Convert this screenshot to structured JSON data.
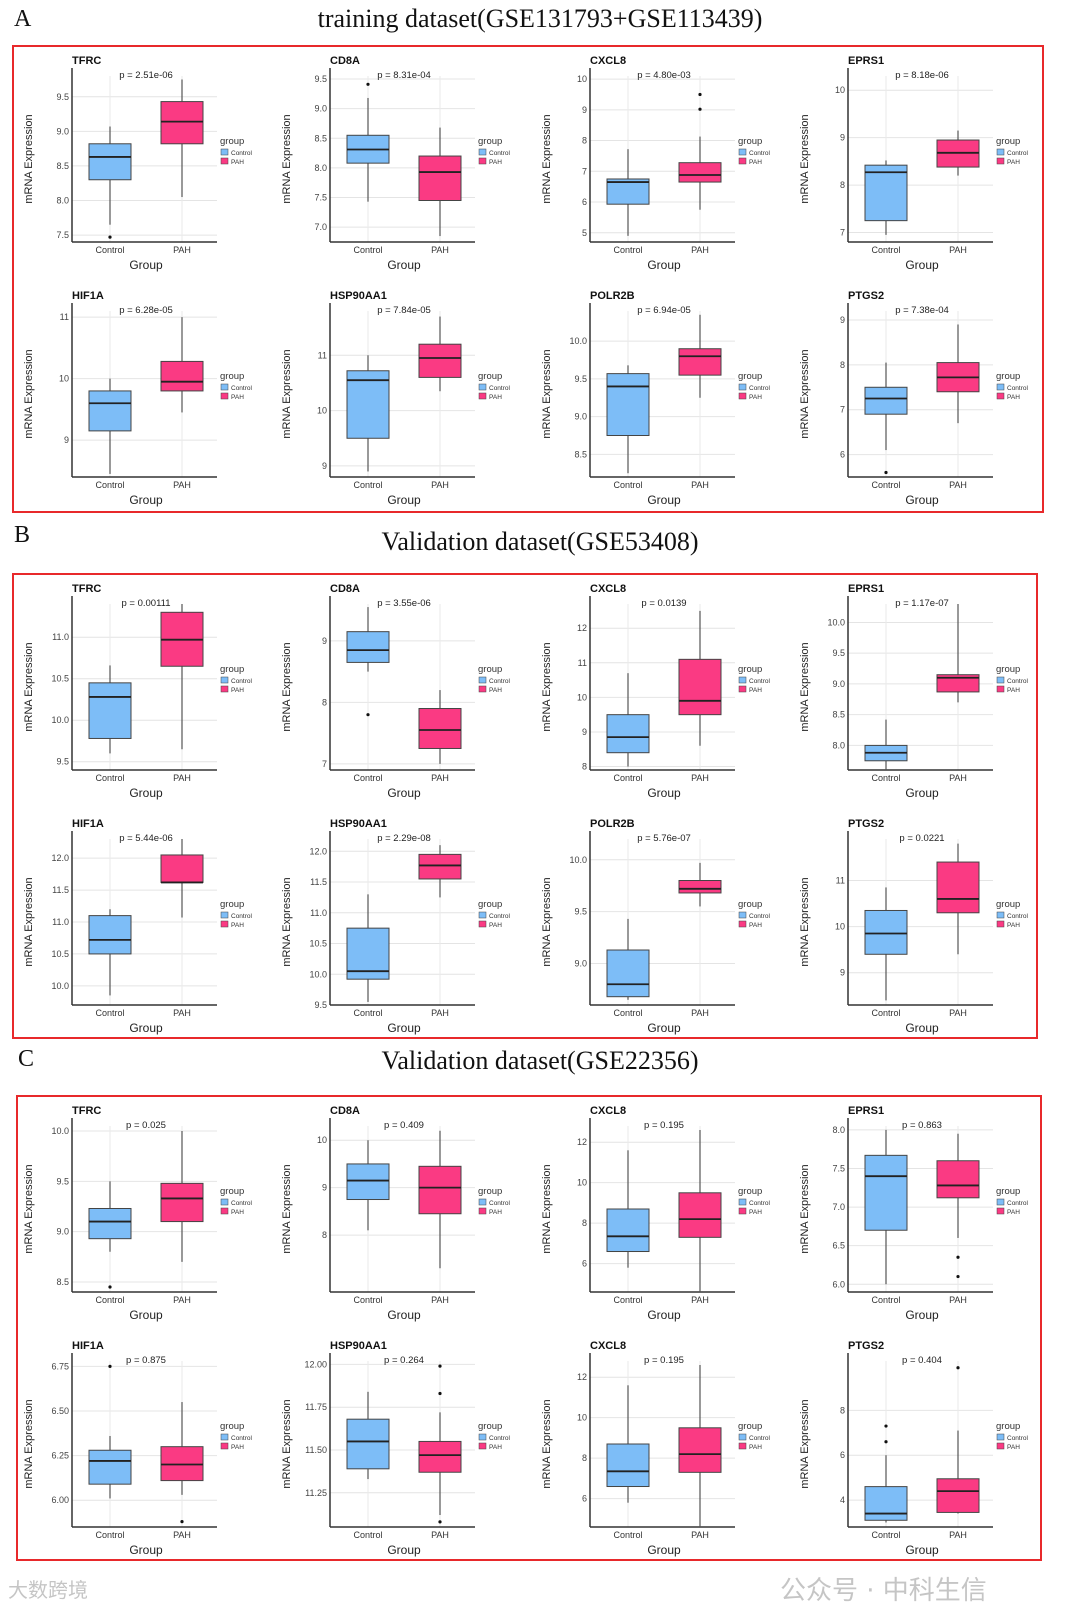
{
  "colors": {
    "control": "#7dbdf7",
    "pah": "#fa3a83",
    "frame": "#e8292b"
  },
  "watermarks": [
    "公众号 · 中科生信",
    "大数跨境"
  ],
  "chart_data": [
    {
      "type": "box",
      "section": "A",
      "title": "training dataset(GSE131793+GSE113439)",
      "ylabel": "mRNA Expression",
      "xlabel": "Group",
      "legend_title": "group",
      "categories": [
        "Control",
        "PAH"
      ],
      "plots": [
        {
          "gene": "TFRC",
          "p": "p = 2.51e-06",
          "ylim": [
            7.4,
            9.8
          ],
          "ticks": [
            "7.5",
            "8.0",
            "8.5",
            "9.0",
            "9.5"
          ],
          "control": [
            7.65,
            8.3,
            8.63,
            8.82,
            9.07
          ],
          "control_out": [
            7.47
          ],
          "pah": [
            8.05,
            8.82,
            9.14,
            9.43,
            9.75
          ],
          "pah_out": []
        },
        {
          "gene": "CD8A",
          "p": "p = 8.31e-04",
          "ylim": [
            6.75,
            9.55
          ],
          "ticks": [
            "7.0",
            "7.5",
            "8.0",
            "8.5",
            "9.0",
            "9.5"
          ],
          "control": [
            7.43,
            8.08,
            8.31,
            8.55,
            9.18
          ],
          "control_out": [
            9.41
          ],
          "pah": [
            6.85,
            7.45,
            7.93,
            8.2,
            8.68
          ],
          "pah_out": []
        },
        {
          "gene": "CXCL8",
          "p": "p = 4.80e-03",
          "ylim": [
            4.7,
            10.1
          ],
          "ticks": [
            "5",
            "6",
            "7",
            "8",
            "9",
            "10"
          ],
          "control": [
            4.9,
            5.93,
            6.65,
            6.75,
            7.72
          ],
          "control_out": [],
          "pah": [
            5.75,
            6.65,
            6.88,
            7.28,
            8.13
          ],
          "pah_out": [
            9.02,
            9.5
          ]
        },
        {
          "gene": "EPRS1",
          "p": "p = 8.18e-06",
          "ylim": [
            6.8,
            10.3
          ],
          "ticks": [
            "7",
            "8",
            "9",
            "10"
          ],
          "control": [
            6.95,
            7.25,
            8.27,
            8.42,
            8.52
          ],
          "control_out": [],
          "pah": [
            8.2,
            8.38,
            8.68,
            8.95,
            9.15
          ],
          "pah_out": []
        },
        {
          "gene": "HIF1A",
          "p": "p = 6.28e-05",
          "ylim": [
            8.4,
            11.1
          ],
          "ticks": [
            "9",
            "10",
            "11"
          ],
          "control": [
            8.45,
            9.15,
            9.6,
            9.8,
            10.0
          ],
          "control_out": [],
          "pah": [
            9.45,
            9.8,
            9.95,
            10.28,
            11.0
          ],
          "pah_out": []
        },
        {
          "gene": "HSP90AA1",
          "p": "p = 7.84e-05",
          "ylim": [
            8.8,
            11.8
          ],
          "ticks": [
            "9",
            "10",
            "11"
          ],
          "control": [
            8.9,
            9.5,
            10.55,
            10.72,
            11.0
          ],
          "control_out": [],
          "pah": [
            10.35,
            10.6,
            10.95,
            11.2,
            11.7
          ],
          "pah_out": []
        },
        {
          "gene": "POLR2B",
          "p": "p = 6.94e-05",
          "ylim": [
            8.2,
            10.4
          ],
          "ticks": [
            "8.5",
            "9.0",
            "9.5",
            "10.0"
          ],
          "control": [
            8.25,
            8.75,
            9.4,
            9.57,
            9.68
          ],
          "control_out": [],
          "pah": [
            9.25,
            9.55,
            9.8,
            9.9,
            10.35
          ],
          "pah_out": []
        },
        {
          "gene": "PTGS2",
          "p": "p = 7.38e-04",
          "ylim": [
            5.5,
            9.2
          ],
          "ticks": [
            "6",
            "7",
            "8",
            "9"
          ],
          "control": [
            6.1,
            6.9,
            7.25,
            7.5,
            8.05
          ],
          "control_out": [
            5.6
          ],
          "pah": [
            6.7,
            7.4,
            7.72,
            8.05,
            8.9
          ],
          "pah_out": []
        }
      ]
    },
    {
      "type": "box",
      "section": "B",
      "title": "Validation dataset(GSE53408)",
      "ylabel": "mRNA Expression",
      "xlabel": "Group",
      "legend_title": "group",
      "categories": [
        "Control",
        "PAH"
      ],
      "plots": [
        {
          "gene": "TFRC",
          "p": "p = 0.00111",
          "ylim": [
            9.4,
            11.4
          ],
          "ticks": [
            "9.5",
            "10.0",
            "10.5",
            "11.0"
          ],
          "control": [
            9.6,
            9.78,
            10.28,
            10.45,
            10.66
          ],
          "control_out": [],
          "pah": [
            9.65,
            10.65,
            10.97,
            11.3,
            11.4
          ],
          "pah_out": []
        },
        {
          "gene": "CD8A",
          "p": "p = 3.55e-06",
          "ylim": [
            6.9,
            9.6
          ],
          "ticks": [
            "7",
            "8",
            "9"
          ],
          "control": [
            8.5,
            8.65,
            8.85,
            9.15,
            9.55
          ],
          "control_out": [
            7.8
          ],
          "pah": [
            7.0,
            7.25,
            7.55,
            7.9,
            8.2
          ],
          "pah_out": []
        },
        {
          "gene": "CXCL8",
          "p": "p = 0.0139",
          "ylim": [
            7.9,
            12.7
          ],
          "ticks": [
            "8",
            "9",
            "10",
            "11",
            "12"
          ],
          "control": [
            8.0,
            8.4,
            8.85,
            9.5,
            10.7
          ],
          "control_out": [],
          "pah": [
            8.6,
            9.5,
            9.9,
            11.1,
            12.5
          ],
          "pah_out": []
        },
        {
          "gene": "EPRS1",
          "p": "p = 1.17e-07",
          "ylim": [
            7.6,
            10.3
          ],
          "ticks": [
            "8.0",
            "8.5",
            "9.0",
            "9.5",
            "10.0"
          ],
          "control": [
            7.6,
            7.75,
            7.88,
            8.0,
            8.42
          ],
          "control_out": [],
          "pah": [
            8.7,
            8.87,
            9.1,
            9.15,
            10.3
          ],
          "pah_out": []
        },
        {
          "gene": "HIF1A",
          "p": "p = 5.44e-06",
          "ylim": [
            9.7,
            12.3
          ],
          "ticks": [
            "10.0",
            "10.5",
            "11.0",
            "11.5",
            "12.0"
          ],
          "control": [
            9.85,
            10.5,
            10.72,
            11.1,
            11.2
          ],
          "control_out": [],
          "pah": [
            11.07,
            11.62,
            11.62,
            12.05,
            12.3
          ],
          "pah_out": []
        },
        {
          "gene": "HSP90AA1",
          "p": "p = 2.29e-08",
          "ylim": [
            9.5,
            12.2
          ],
          "ticks": [
            "9.5",
            "10.0",
            "10.5",
            "11.0",
            "11.5",
            "12.0"
          ],
          "control": [
            9.55,
            9.92,
            10.05,
            10.75,
            11.3
          ],
          "control_out": [],
          "pah": [
            11.25,
            11.55,
            11.77,
            11.95,
            12.1
          ],
          "pah_out": []
        },
        {
          "gene": "POLR2B",
          "p": "p = 5.76e-07",
          "ylim": [
            8.6,
            10.2
          ],
          "ticks": [
            "9.0",
            "9.5",
            "10.0"
          ],
          "control": [
            8.65,
            8.68,
            8.8,
            9.13,
            9.43
          ],
          "control_out": [],
          "pah": [
            9.55,
            9.68,
            9.72,
            9.8,
            9.97
          ],
          "pah_out": []
        },
        {
          "gene": "PTGS2",
          "p": "p = 0.0221",
          "ylim": [
            8.3,
            11.9
          ],
          "ticks": [
            "9",
            "10",
            "11"
          ],
          "control": [
            8.4,
            9.4,
            9.85,
            10.35,
            10.85
          ],
          "control_out": [],
          "pah": [
            9.4,
            10.3,
            10.6,
            11.4,
            11.8
          ],
          "pah_out": []
        }
      ]
    },
    {
      "type": "box",
      "section": "C",
      "title": "Validation dataset(GSE22356)",
      "ylabel": "mRNA Expression",
      "xlabel": "Group",
      "legend_title": "group",
      "categories": [
        "Control",
        "PAH"
      ],
      "plots": [
        {
          "gene": "TFRC",
          "p": "p = 0.025",
          "ylim": [
            8.4,
            10.05
          ],
          "ticks": [
            "8.5",
            "9.0",
            "9.5",
            "10.0"
          ],
          "control": [
            8.8,
            8.93,
            9.1,
            9.23,
            9.5
          ],
          "control_out": [
            8.45
          ],
          "pah": [
            8.7,
            9.1,
            9.33,
            9.48,
            10.0
          ],
          "pah_out": []
        },
        {
          "gene": "CD8A",
          "p": "p = 0.409",
          "ylim": [
            6.8,
            10.3
          ],
          "ticks": [
            "8",
            "9",
            "10"
          ],
          "control": [
            8.1,
            8.75,
            9.15,
            9.5,
            10.0
          ],
          "control_out": [],
          "pah": [
            7.3,
            8.45,
            9.0,
            9.45,
            10.2
          ],
          "pah_out": []
        },
        {
          "gene": "CXCL8",
          "p": "p = 0.195",
          "ylim": [
            4.6,
            12.8
          ],
          "ticks": [
            "6",
            "8",
            "10",
            "12"
          ],
          "control": [
            5.8,
            6.6,
            7.35,
            8.7,
            11.6
          ],
          "control_out": [],
          "pah": [
            4.6,
            7.3,
            8.2,
            9.5,
            12.6
          ],
          "pah_out": []
        },
        {
          "gene": "EPRS1",
          "p": "p = 0.863",
          "ylim": [
            5.9,
            8.05
          ],
          "ticks": [
            "6.0",
            "6.5",
            "7.0",
            "7.5",
            "8.0"
          ],
          "control": [
            6.0,
            6.7,
            7.4,
            7.67,
            8.0
          ],
          "control_out": [],
          "pah": [
            6.6,
            7.12,
            7.28,
            7.6,
            7.95
          ],
          "pah_out": [
            6.35,
            6.1
          ]
        },
        {
          "gene": "HIF1A",
          "p": "p = 0.875",
          "ylim": [
            5.85,
            6.78
          ],
          "ticks": [
            "6.00",
            "6.25",
            "6.50",
            "6.75"
          ],
          "control": [
            6.01,
            6.09,
            6.22,
            6.28,
            6.36
          ],
          "control_out": [
            6.75
          ],
          "pah": [
            6.03,
            6.11,
            6.2,
            6.3,
            6.55
          ],
          "pah_out": [
            5.88
          ]
        },
        {
          "gene": "HSP90AA1",
          "p": "p = 0.264",
          "ylim": [
            11.05,
            12.02
          ],
          "ticks": [
            "11.25",
            "11.50",
            "11.75",
            "12.00"
          ],
          "control": [
            11.33,
            11.39,
            11.55,
            11.68,
            11.84
          ],
          "control_out": [],
          "pah": [
            11.12,
            11.37,
            11.47,
            11.55,
            11.72
          ],
          "pah_out": [
            11.08,
            11.83,
            11.99
          ]
        },
        {
          "gene": "CXCL8",
          "p": "p = 0.195",
          "ylim": [
            4.6,
            12.8
          ],
          "ticks": [
            "6",
            "8",
            "10",
            "12"
          ],
          "control": [
            5.8,
            6.6,
            7.35,
            8.7,
            11.6
          ],
          "control_out": [],
          "pah": [
            4.6,
            7.3,
            8.2,
            9.5,
            12.6
          ],
          "pah_out": []
        },
        {
          "gene": "PTGS2",
          "p": "p = 0.404",
          "ylim": [
            2.8,
            10.2
          ],
          "ticks": [
            "4",
            "6",
            "8"
          ],
          "control": [
            3.0,
            3.1,
            3.4,
            4.6,
            6.0
          ],
          "control_out": [
            6.6,
            7.3
          ],
          "pah": [
            3.4,
            3.45,
            4.4,
            4.95,
            7.1
          ],
          "pah_out": [
            9.9
          ]
        }
      ]
    }
  ]
}
